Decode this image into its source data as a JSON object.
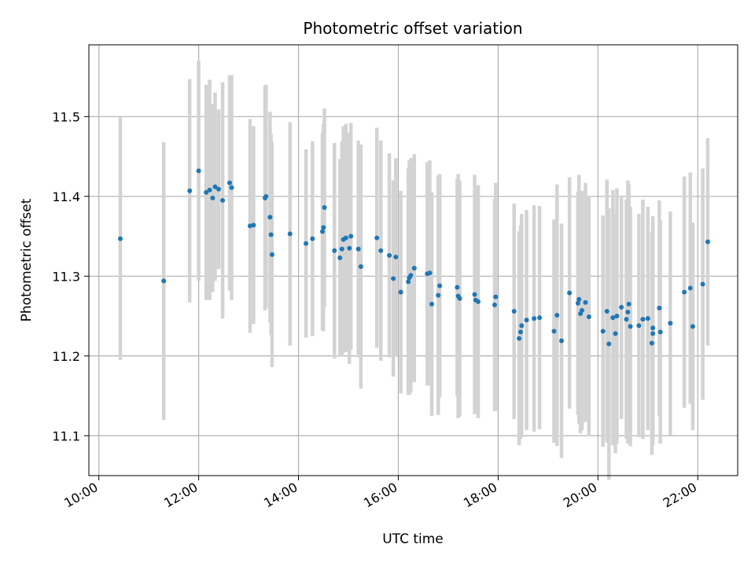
{
  "chart_data": {
    "type": "scatter",
    "title": "Photometric offset variation",
    "xlabel": "UTC time",
    "ylabel": "Photometric offset",
    "x_unit": "hour",
    "xlim": [
      9.8,
      22.8
    ],
    "ylim": [
      11.05,
      11.59
    ],
    "x_ticks": [
      10,
      12,
      14,
      16,
      18,
      20,
      22
    ],
    "x_tick_labels": [
      "10:00",
      "12:00",
      "14:00",
      "16:00",
      "18:00",
      "20:00",
      "22:00"
    ],
    "y_ticks": [
      11.1,
      11.2,
      11.3,
      11.4,
      11.5
    ],
    "y_tick_labels": [
      "11.1",
      "11.2",
      "11.3",
      "11.4",
      "11.5"
    ],
    "grid": true,
    "colors": {
      "points": "#1f77b4",
      "errorbars": "#d3d3d3",
      "grid": "#b0b0b0"
    },
    "series": [
      {
        "x": [
          10.43,
          11.3,
          11.82,
          12.0,
          12.15,
          12.22,
          12.28,
          12.33,
          12.4,
          12.48,
          12.62,
          12.66,
          13.03,
          13.1,
          13.33,
          13.35,
          13.43,
          13.45,
          13.47,
          13.83,
          14.15,
          14.28,
          14.48,
          14.5,
          14.52,
          14.72,
          14.83,
          14.87,
          14.9,
          14.95,
          15.02,
          15.05,
          15.2,
          15.25,
          15.57,
          15.65,
          15.82,
          15.9,
          15.95,
          16.05,
          16.2,
          16.22,
          16.25,
          16.32,
          16.58,
          16.63,
          16.67,
          16.8,
          16.83,
          17.18,
          17.2,
          17.23,
          17.53,
          17.55,
          17.6,
          17.93,
          17.95,
          18.32,
          18.42,
          18.45,
          18.47,
          18.57,
          18.72,
          18.83,
          19.12,
          19.18,
          19.27,
          19.43,
          19.6,
          19.62,
          19.65,
          19.68,
          19.75,
          19.82,
          20.1,
          20.18,
          20.22,
          20.3,
          20.35,
          20.38,
          20.47,
          20.57,
          20.6,
          20.62,
          20.65,
          20.82,
          20.9,
          21.0,
          21.08,
          21.1,
          21.1,
          21.23,
          21.25,
          21.45,
          21.73,
          21.85,
          21.9,
          22.1,
          22.2
        ],
        "y": [
          11.347,
          11.294,
          11.407,
          11.432,
          11.405,
          11.408,
          11.398,
          11.412,
          11.409,
          11.395,
          11.417,
          11.411,
          11.363,
          11.364,
          11.398,
          11.4,
          11.374,
          11.352,
          11.327,
          11.353,
          11.341,
          11.347,
          11.356,
          11.361,
          11.386,
          11.332,
          11.323,
          11.334,
          11.346,
          11.348,
          11.335,
          11.35,
          11.334,
          11.312,
          11.348,
          11.332,
          11.326,
          11.297,
          11.324,
          11.28,
          11.293,
          11.298,
          11.301,
          11.31,
          11.303,
          11.304,
          11.265,
          11.276,
          11.288,
          11.286,
          11.275,
          11.272,
          11.277,
          11.27,
          11.268,
          11.264,
          11.274,
          11.256,
          11.222,
          11.23,
          11.238,
          11.245,
          11.247,
          11.248,
          11.231,
          11.251,
          11.219,
          11.279,
          11.266,
          11.271,
          11.253,
          11.257,
          11.267,
          11.249,
          11.231,
          11.256,
          11.215,
          11.248,
          11.228,
          11.25,
          11.261,
          11.246,
          11.255,
          11.265,
          11.237,
          11.238,
          11.246,
          11.247,
          11.216,
          11.235,
          11.228,
          11.26,
          11.23,
          11.241,
          11.28,
          11.285,
          11.237,
          11.29,
          11.343
        ],
        "yerr": [
          0.152,
          0.174,
          0.14,
          0.138,
          0.135,
          0.138,
          0.118,
          0.118,
          0.1,
          0.148,
          0.135,
          0.141,
          0.134,
          0.124,
          0.141,
          0.14,
          0.132,
          0.126,
          0.141,
          0.14,
          0.118,
          0.122,
          0.124,
          0.13,
          0.124,
          0.135,
          0.124,
          0.135,
          0.142,
          0.143,
          0.145,
          0.142,
          0.136,
          0.153,
          0.138,
          0.138,
          0.128,
          0.123,
          0.124,
          0.127,
          0.142,
          0.147,
          0.147,
          0.143,
          0.14,
          0.141,
          0.14,
          0.15,
          0.14,
          0.136,
          0.153,
          0.148,
          0.15,
          0.14,
          0.146,
          0.133,
          0.143,
          0.135,
          0.134,
          0.134,
          0.14,
          0.138,
          0.142,
          0.14,
          0.14,
          0.164,
          0.147,
          0.145,
          0.14,
          0.156,
          0.15,
          0.15,
          0.15,
          0.15,
          0.145,
          0.165,
          0.17,
          0.16,
          0.15,
          0.16,
          0.14,
          0.15,
          0.165,
          0.15,
          0.15,
          0.14,
          0.15,
          0.14,
          0.14,
          0.14,
          0.14,
          0.135,
          0.14,
          0.14,
          0.145,
          0.145,
          0.13,
          0.145,
          0.13
        ]
      }
    ]
  }
}
